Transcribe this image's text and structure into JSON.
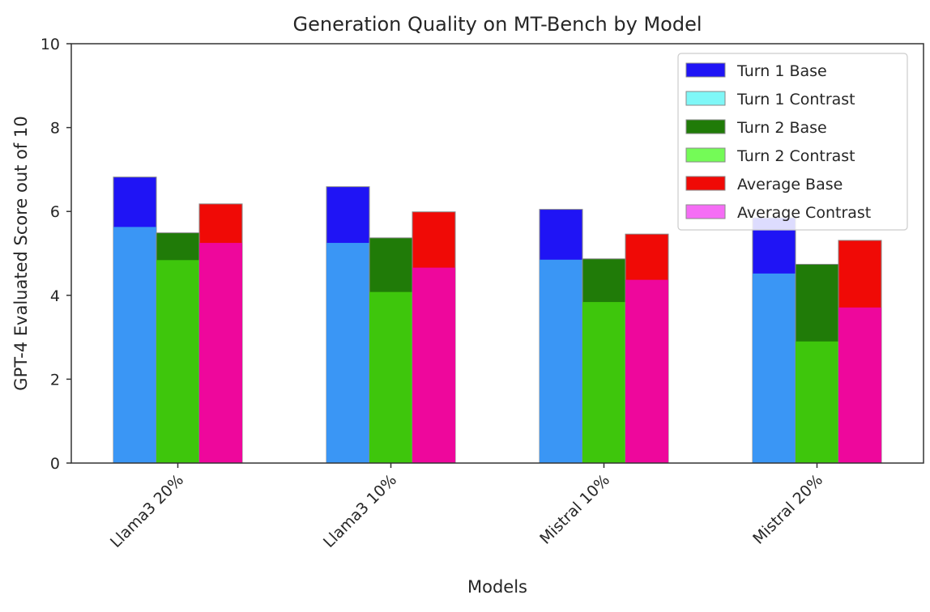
{
  "chart_data": {
    "type": "bar",
    "stacked_overlay": true,
    "title": "Generation Quality on MT-Bench by Model",
    "xlabel": "Models",
    "ylabel": "GPT-4 Evaluated Score out of 10",
    "ylim": [
      0,
      10
    ],
    "yticks": [
      "0",
      "2",
      "4",
      "6",
      "8",
      "10"
    ],
    "categories": [
      "Llama3 20%",
      "Llama3 10%",
      "Mistral 10%",
      "Mistral 20%"
    ],
    "groups": [
      {
        "base": {
          "name": "Turn 1 Base",
          "color": "#1f14f5",
          "values": [
            6.82,
            6.59,
            6.05,
            5.85
          ]
        },
        "contrast": {
          "name": "Turn 1 Contrast",
          "color": "#3a96f5",
          "legend_color": "#7ff7f7",
          "values": [
            5.63,
            5.25,
            4.85,
            4.52
          ]
        }
      },
      {
        "base": {
          "name": "Turn 2 Base",
          "color": "#207b08",
          "values": [
            5.49,
            5.37,
            4.87,
            4.74
          ]
        },
        "contrast": {
          "name": "Turn 2 Contrast",
          "color": "#3ec60c",
          "legend_color": "#74fb57",
          "values": [
            4.84,
            4.08,
            3.84,
            2.9
          ]
        }
      },
      {
        "base": {
          "name": "Average Base",
          "color": "#f00a06",
          "values": [
            6.18,
            5.99,
            5.46,
            5.31
          ]
        },
        "contrast": {
          "name": "Average Contrast",
          "color": "#ee079c",
          "legend_color": "#f56df5",
          "values": [
            5.25,
            4.66,
            4.37,
            3.71
          ]
        }
      }
    ],
    "legend": {
      "position": "top-right",
      "entries": [
        "Turn 1 Base",
        "Turn 1 Contrast",
        "Turn 2 Base",
        "Turn 2 Contrast",
        "Average Base",
        "Average Contrast"
      ]
    },
    "grid": false
  }
}
